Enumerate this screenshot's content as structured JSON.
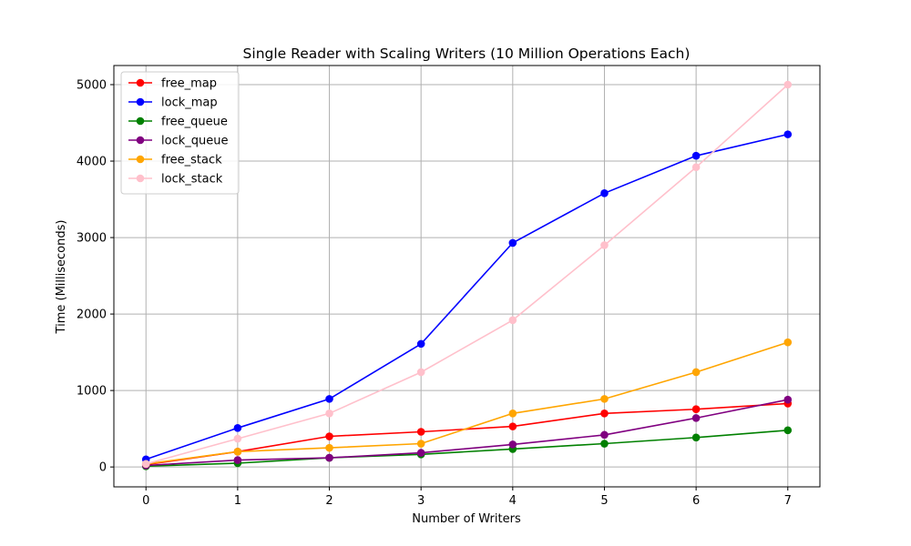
{
  "chart_data": {
    "type": "line",
    "title": "Single Reader with Scaling Writers (10 Million Operations Each)",
    "xlabel": "Number of Writers",
    "ylabel": "Time (Milliseconds)",
    "x": [
      0,
      1,
      2,
      3,
      4,
      5,
      6,
      7
    ],
    "xlim": [
      -0.35,
      7.35
    ],
    "ylim": [
      -260,
      5250
    ],
    "xticks": [
      0,
      1,
      2,
      3,
      4,
      5,
      6,
      7
    ],
    "yticks": [
      0,
      1000,
      2000,
      3000,
      4000,
      5000
    ],
    "grid": true,
    "legend_position": "top-left",
    "series": [
      {
        "name": "free_map",
        "color": "#ff0000",
        "values": [
          30,
          200,
          400,
          460,
          530,
          700,
          755,
          830
        ]
      },
      {
        "name": "lock_map",
        "color": "#0000ff",
        "values": [
          100,
          510,
          890,
          1610,
          2930,
          3580,
          4070,
          4350
        ]
      },
      {
        "name": "free_queue",
        "color": "#008000",
        "values": [
          10,
          50,
          120,
          165,
          235,
          305,
          385,
          480
        ]
      },
      {
        "name": "lock_queue",
        "color": "#800080",
        "values": [
          20,
          90,
          120,
          185,
          295,
          420,
          640,
          880
        ]
      },
      {
        "name": "free_stack",
        "color": "#ffa500",
        "values": [
          40,
          200,
          250,
          305,
          700,
          890,
          1240,
          1630
        ]
      },
      {
        "name": "lock_stack",
        "color": "#ffc0cb",
        "values": [
          40,
          370,
          700,
          1240,
          1920,
          2900,
          3920,
          5000
        ]
      }
    ]
  }
}
